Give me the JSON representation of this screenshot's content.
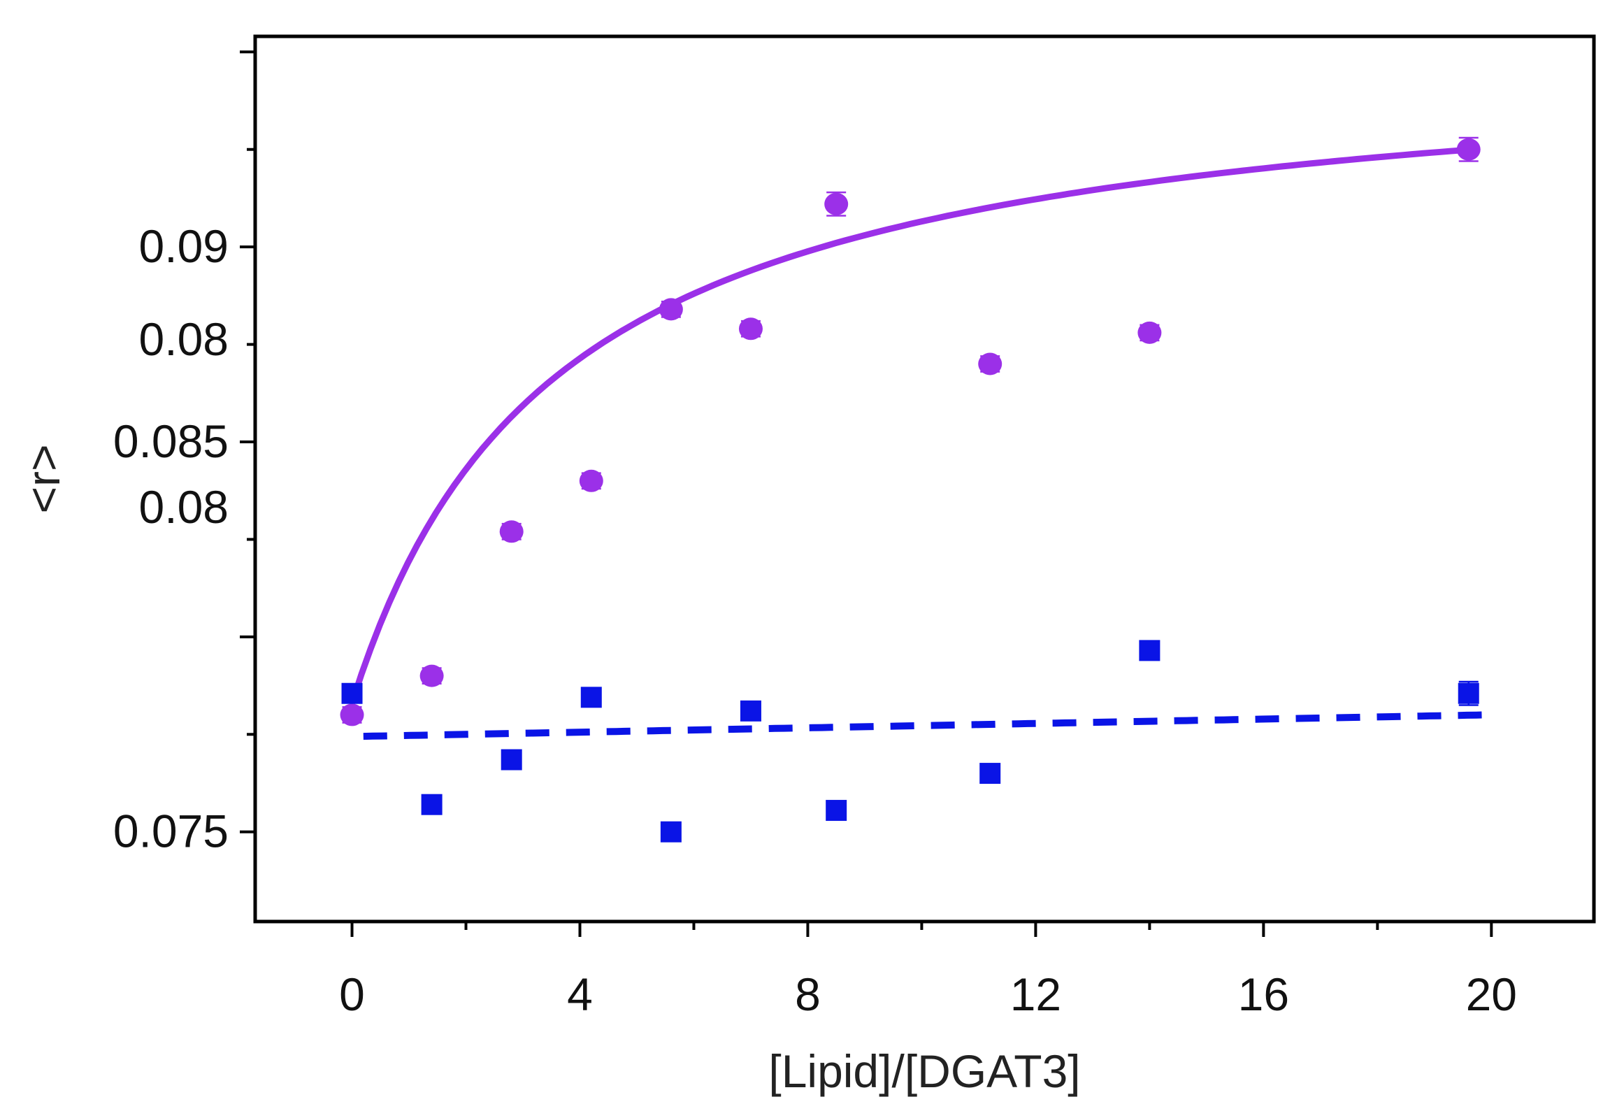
{
  "chart_data": {
    "type": "scatter",
    "xlabel": "[Lipid]/[DGAT3]",
    "ylabel": "<r>",
    "xlim": [
      -1.7,
      21.8
    ],
    "ylim": [
      0.0727,
      0.0954
    ],
    "x_ticks": [
      0,
      4,
      8,
      12,
      16,
      20
    ],
    "x_tick_labels": [
      "0",
      "4",
      "8",
      "12",
      "16",
      "20"
    ],
    "y_ticks": [
      0.075,
      0.08,
      0.085,
      0.09
    ],
    "y_tick_labels": [
      "0.075",
      "0.08",
      "0.085",
      "0.09"
    ],
    "y_tick_positions_extra": [
      0.08
    ],
    "y_tick_labels_extra": [
      "0.08"
    ],
    "grid": false,
    "series": [
      {
        "marker": "circle",
        "color": "#9b30e8",
        "x": [
          0,
          1.4,
          2.8,
          4.2,
          5.6,
          7.0,
          8.5,
          11.2,
          14.0,
          19.6
        ],
        "y": [
          0.078,
          0.079,
          0.0827,
          0.084,
          0.0884,
          0.0879,
          0.0911,
          0.087,
          0.0878,
          0.0925
        ],
        "err": [
          0.0002,
          0.0002,
          0.0002,
          0.0002,
          0.0002,
          0.0002,
          0.0003,
          0.0002,
          0.0002,
          0.0003
        ],
        "fit": {
          "style": "solid",
          "x_start": 0,
          "x_end": 19.6,
          "y0": 0.0783,
          "amp": 0.0168,
          "k": 3.6
        }
      },
      {
        "marker": "square",
        "color": "#0a14e6",
        "x": [
          0,
          1.4,
          2.8,
          4.2,
          5.6,
          7.0,
          8.5,
          11.2,
          14.0,
          19.6
        ],
        "y": [
          0.07855,
          0.0757,
          0.07685,
          0.07845,
          0.075,
          0.0781,
          0.07555,
          0.0765,
          0.07965,
          0.07855
        ],
        "err": [
          0.0002,
          0.0002,
          0.0002,
          0.0002,
          0.0002,
          0.0002,
          0.0002,
          0.0002,
          0.0002,
          0.0003
        ],
        "fit": {
          "style": "dashed",
          "x_start": 0.2,
          "x_end": 19.9,
          "y_at_start": 0.07745,
          "y_at_end": 0.078
        }
      }
    ]
  }
}
